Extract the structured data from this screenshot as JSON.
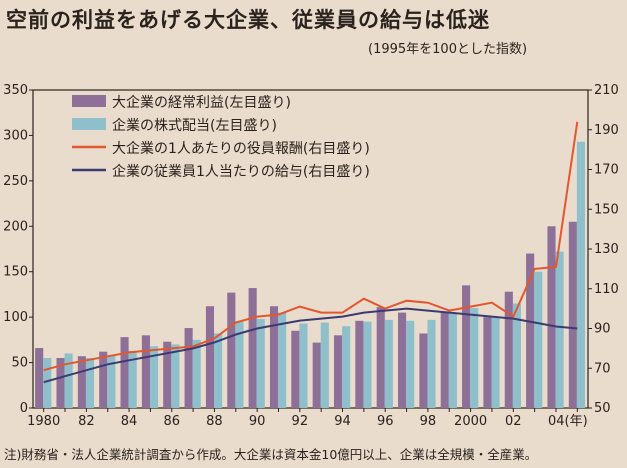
{
  "title": "空前の利益をあげる大企業、従業員の給与は低迷",
  "subtitle": "(1995年を100とした指数)",
  "note": "注)財務省・法人企業統計調査から作成。大企業は資本金10億円以上、企業は全規模・全産業。",
  "colors": {
    "profit": "#8e6f98",
    "dividend": "#8fbfcb",
    "exec": "#e2572e",
    "employee": "#3c3a72",
    "background": "#e9dccd"
  },
  "chart_data": {
    "type": "bar",
    "x": [
      1980,
      1981,
      1982,
      1983,
      1984,
      1985,
      1986,
      1987,
      1988,
      1989,
      1990,
      1991,
      1992,
      1993,
      1994,
      1995,
      1996,
      1997,
      1998,
      1999,
      2000,
      2001,
      2002,
      2003,
      2004,
      2005
    ],
    "x_tick_labels": [
      "1980",
      "82",
      "84",
      "86",
      "88",
      "90",
      "92",
      "94",
      "96",
      "98",
      "2000",
      "02",
      "04(年)"
    ],
    "left_axis": {
      "ticks": [
        "0",
        "50",
        "100",
        "150",
        "200",
        "250",
        "300",
        "350"
      ],
      "range": [
        0,
        350
      ]
    },
    "right_axis": {
      "ticks": [
        "50",
        "70",
        "90",
        "110",
        "130",
        "150",
        "170",
        "190",
        "210"
      ],
      "range": [
        50,
        210
      ]
    },
    "series": [
      {
        "name": "大企業の経常利益(左目盛り)",
        "kind": "bar",
        "axis": "left",
        "values": [
          66,
          55,
          57,
          62,
          78,
          80,
          73,
          88,
          112,
          127,
          132,
          112,
          85,
          72,
          80,
          96,
          111,
          105,
          82,
          105,
          135,
          100,
          128,
          170,
          200,
          205
        ]
      },
      {
        "name": "企業の株式配当(左目盛り)",
        "kind": "bar",
        "axis": "left",
        "values": [
          55,
          60,
          55,
          58,
          63,
          68,
          70,
          75,
          82,
          95,
          98,
          105,
          93,
          94,
          90,
          95,
          97,
          96,
          97,
          105,
          110,
          100,
          115,
          150,
          172,
          293
        ]
      },
      {
        "name": "大企業の1人あたりの役員報酬(右目盛り)",
        "kind": "line",
        "axis": "right",
        "values": [
          69,
          72,
          74,
          76,
          78,
          79,
          80,
          81,
          85,
          93,
          96,
          97,
          101,
          98,
          98,
          105,
          100,
          104,
          103,
          99,
          101,
          103,
          96,
          120,
          121,
          194
        ]
      },
      {
        "name": "企業の従業員1人当たりの給与(右目盛り)",
        "kind": "line",
        "axis": "right",
        "values": [
          63,
          66,
          69,
          72,
          74,
          76,
          78,
          80,
          83,
          87,
          90,
          92,
          94,
          95,
          96,
          98,
          99,
          100,
          99,
          98,
          97,
          96,
          95,
          93,
          91,
          90
        ]
      }
    ]
  }
}
